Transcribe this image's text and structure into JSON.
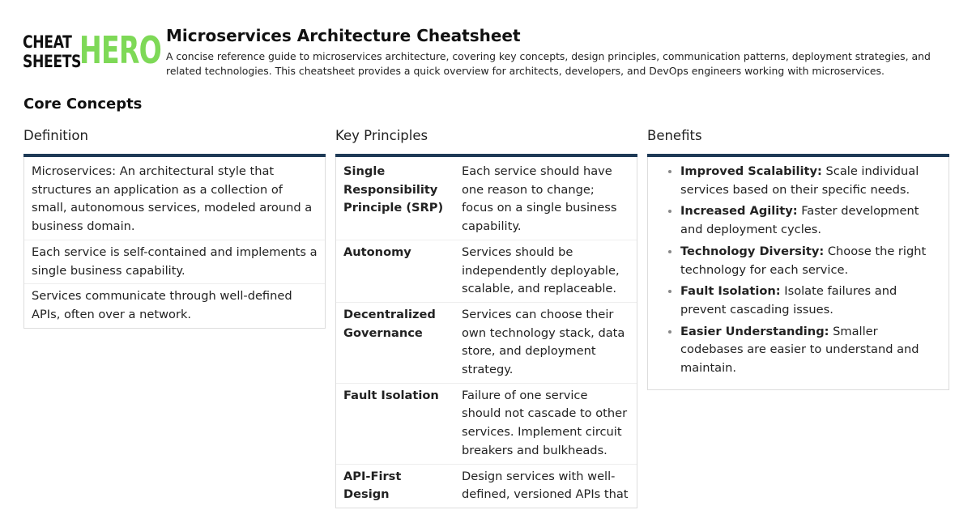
{
  "logo": {
    "line1": "CHEAT",
    "line2": "SHEETS",
    "brand": "HERO"
  },
  "header": {
    "title": "Microservices Architecture Cheatsheet",
    "description": "A concise reference guide to microservices architecture, covering key concepts, design principles, communication patterns, deployment strategies, and related technologies. This cheatsheet provides a quick overview for architects, developers, and DevOps engineers working with microservices."
  },
  "section": {
    "title": "Core Concepts",
    "definition": {
      "heading": "Definition",
      "items": [
        "Microservices: An architectural style that structures an application as a collection of small, autonomous services, modeled around a business domain.",
        "Each service is self-contained and implements a single business capability.",
        "Services communicate through well-defined APIs, often over a network."
      ]
    },
    "principles": {
      "heading": "Key Principles",
      "rows": [
        [
          "Single Responsibility Principle (SRP)",
          "Each service should have one reason to change; focus on a single business capability."
        ],
        [
          "Autonomy",
          "Services should be independently deployable, scalable, and replaceable."
        ],
        [
          "Decentralized Governance",
          "Services can choose their own technology stack, data store, and deployment strategy."
        ],
        [
          "Fault Isolation",
          "Failure of one service should not cascade to other services. Implement circuit breakers and bulkheads."
        ],
        [
          "API-First Design",
          "Design services with well-defined, versioned APIs that"
        ]
      ]
    },
    "benefits": {
      "heading": "Benefits",
      "items": [
        {
          "term": "Improved Scalability:",
          "text": "Scale individual services based on their specific needs."
        },
        {
          "term": "Increased Agility:",
          "text": "Faster development and deployment cycles."
        },
        {
          "term": "Technology Diversity:",
          "text": "Choose the right technology for each service."
        },
        {
          "term": "Fault Isolation:",
          "text": "Isolate failures and prevent cascading issues."
        },
        {
          "term": "Easier Understanding:",
          "text": "Smaller codebases are easier to understand and maintain."
        }
      ]
    }
  }
}
